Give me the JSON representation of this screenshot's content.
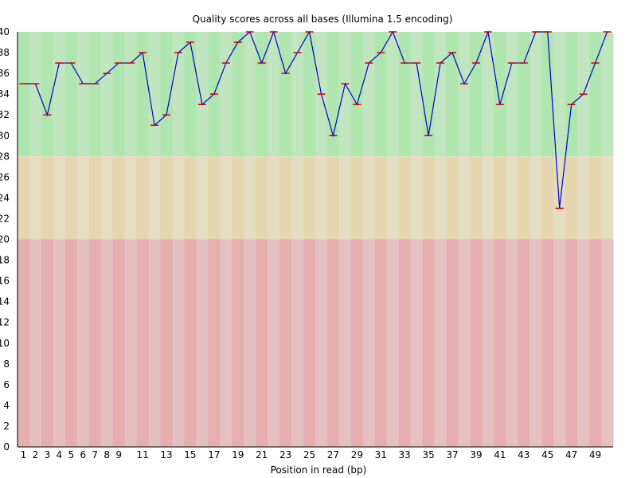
{
  "chart_data": {
    "type": "line",
    "title": "Quality scores across all bases (Illumina 1.5 encoding)",
    "xlabel": "Position in read (bp)",
    "ylabel": "",
    "ylim": [
      0,
      40
    ],
    "yticks": [
      0,
      2,
      4,
      6,
      8,
      10,
      12,
      14,
      16,
      18,
      20,
      22,
      24,
      26,
      28,
      30,
      32,
      34,
      36,
      38,
      40
    ],
    "xtick_labels": [
      "1",
      "2",
      "3",
      "4",
      "5",
      "6",
      "7",
      "8",
      "9",
      "11",
      "13",
      "15",
      "17",
      "19",
      "21",
      "23",
      "25",
      "27",
      "29",
      "31",
      "33",
      "35",
      "37",
      "39",
      "41",
      "43",
      "45",
      "47",
      "49"
    ],
    "positions": [
      1,
      2,
      3,
      4,
      5,
      6,
      7,
      8,
      9,
      10,
      11,
      12,
      13,
      14,
      15,
      16,
      17,
      18,
      19,
      20,
      21,
      22,
      23,
      24,
      25,
      26,
      27,
      28,
      29,
      30,
      31,
      32,
      33,
      34,
      35,
      36,
      37,
      38,
      39,
      40,
      41,
      42,
      43,
      44,
      45,
      46,
      47,
      48,
      49,
      50
    ],
    "series": [
      {
        "values": [
          35,
          35,
          32,
          37,
          37,
          35,
          35,
          36,
          37,
          37,
          38,
          31,
          32,
          38,
          39,
          33,
          34,
          37,
          39,
          40,
          37,
          40,
          36,
          38,
          40,
          34,
          30,
          35,
          33,
          37,
          38,
          40,
          37,
          37,
          30,
          37,
          38,
          35,
          37,
          40,
          33,
          37,
          37,
          40,
          40,
          23,
          33,
          34,
          37,
          40
        ]
      }
    ],
    "bands": [
      {
        "from": 28,
        "to": 40,
        "color_light": "#c0e6c0",
        "color_dark": "#afe6af"
      },
      {
        "from": 20,
        "to": 28,
        "color_light": "#e6dcc0",
        "color_dark": "#e6d6af"
      },
      {
        "from": 0,
        "to": 20,
        "color_light": "#e6c0c0",
        "color_dark": "#e6afaf"
      }
    ],
    "line_color": "#0000cc",
    "marker_color": "#cc0000",
    "grid": false,
    "legend": "none"
  }
}
